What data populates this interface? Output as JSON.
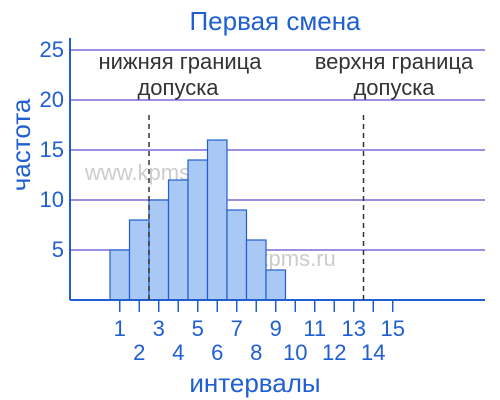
{
  "chart_data": {
    "type": "bar",
    "title": "Первая смена",
    "xlabel": "интервалы",
    "ylabel": "частота",
    "categories": [
      "1",
      "2",
      "3",
      "4",
      "5",
      "6",
      "7",
      "8",
      "9",
      "10",
      "11",
      "12",
      "13",
      "14",
      "15"
    ],
    "values": [
      5,
      8,
      10,
      12,
      14,
      16,
      9,
      6,
      3,
      0,
      0,
      0,
      0,
      0,
      0
    ],
    "ylim": [
      0,
      25
    ],
    "yticks": [
      5,
      10,
      15,
      20,
      25
    ],
    "grid": true,
    "annotations": {
      "lower_limit_line1": "нижняя граница",
      "lower_limit_line2": "допуска",
      "upper_limit_line1": "верхня граница",
      "upper_limit_line2": "допуска"
    },
    "limits": {
      "lower": 2.5,
      "upper": 13.5
    },
    "watermark": "www.kpms.ru"
  },
  "colors": {
    "bar_fill": "#a9c8f3",
    "bar_stroke": "#1f5fd1",
    "grid": "#5a4fd0",
    "axis": "#1f5fd1",
    "text": "#1f5fd1",
    "limit_line": "#333333"
  }
}
